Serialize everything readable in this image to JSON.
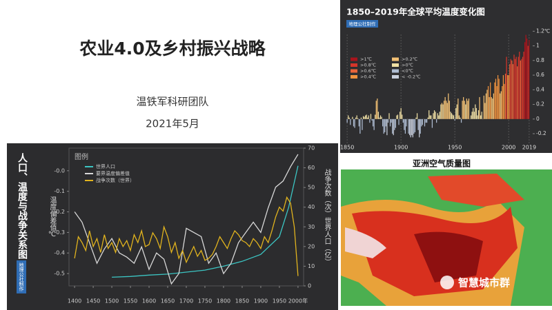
{
  "slide": {
    "title": "农业4.0及乡村振兴战略",
    "team": "温铁军科研团队",
    "date": "2021年5月"
  },
  "chart_data": [
    {
      "type": "bar",
      "title": "1850–2019年全球平均温度变化图",
      "badge": "地理公社制作",
      "x": [
        1850,
        1851,
        1852,
        1853,
        1854,
        1855,
        1856,
        1857,
        1858,
        1859,
        1860,
        1861,
        1862,
        1863,
        1864,
        1865,
        1866,
        1867,
        1868,
        1869,
        1870,
        1871,
        1872,
        1873,
        1874,
        1875,
        1876,
        1877,
        1878,
        1879,
        1880,
        1881,
        1882,
        1883,
        1884,
        1885,
        1886,
        1887,
        1888,
        1889,
        1890,
        1891,
        1892,
        1893,
        1894,
        1895,
        1896,
        1897,
        1898,
        1899,
        1900,
        1901,
        1902,
        1903,
        1904,
        1905,
        1906,
        1907,
        1908,
        1909,
        1910,
        1911,
        1912,
        1913,
        1914,
        1915,
        1916,
        1917,
        1918,
        1919,
        1920,
        1921,
        1922,
        1923,
        1924,
        1925,
        1926,
        1927,
        1928,
        1929,
        1930,
        1931,
        1932,
        1933,
        1934,
        1935,
        1936,
        1937,
        1938,
        1939,
        1940,
        1941,
        1942,
        1943,
        1944,
        1945,
        1946,
        1947,
        1948,
        1949,
        1950,
        1951,
        1952,
        1953,
        1954,
        1955,
        1956,
        1957,
        1958,
        1959,
        1960,
        1961,
        1962,
        1963,
        1964,
        1965,
        1966,
        1967,
        1968,
        1969,
        1970,
        1971,
        1972,
        1973,
        1974,
        1975,
        1976,
        1977,
        1978,
        1979,
        1980,
        1981,
        1982,
        1983,
        1984,
        1985,
        1986,
        1987,
        1988,
        1989,
        1990,
        1991,
        1992,
        1993,
        1994,
        1995,
        1996,
        1997,
        1998,
        1999,
        2000,
        2001,
        2002,
        2003,
        2004,
        2005,
        2006,
        2007,
        2008,
        2009,
        2010,
        2011,
        2012,
        2013,
        2014,
        2015,
        2016,
        2017,
        2018,
        2019
      ],
      "values": [
        -0.05,
        0.05,
        0.02,
        -0.08,
        0.0,
        0.03,
        -0.1,
        -0.12,
        0.02,
        0.05,
        0.01,
        -0.1,
        -0.2,
        0.02,
        -0.15,
        0.04,
        0.03,
        0.05,
        0.06,
        0.02,
        0.05,
        -0.05,
        0.07,
        -0.02,
        -0.1,
        -0.15,
        0.06,
        0.25,
        0.28,
        0.1,
        0.02,
        0.05,
        0.03,
        -0.1,
        -0.2,
        -0.18,
        -0.1,
        -0.22,
        -0.05,
        0.08,
        -0.1,
        -0.05,
        -0.2,
        -0.22,
        -0.15,
        -0.12,
        0.05,
        0.06,
        -0.08,
        0.1,
        0.15,
        0.06,
        -0.05,
        -0.15,
        -0.2,
        -0.1,
        0.0,
        -0.2,
        -0.22,
        -0.25,
        -0.22,
        -0.25,
        -0.2,
        -0.18,
        0.02,
        0.08,
        -0.15,
        -0.25,
        -0.2,
        -0.1,
        -0.08,
        0.0,
        -0.1,
        -0.05,
        -0.05,
        0.02,
        0.12,
        0.05,
        0.05,
        -0.12,
        0.08,
        0.12,
        0.1,
        -0.05,
        0.08,
        0.05,
        0.1,
        0.2,
        0.22,
        0.2,
        0.25,
        0.3,
        0.25,
        0.22,
        0.35,
        0.25,
        0.1,
        0.08,
        0.06,
        0.05,
        -0.02,
        0.15,
        0.2,
        0.28,
        0.05,
        0.02,
        -0.05,
        0.25,
        0.3,
        0.25,
        0.2,
        0.28,
        0.25,
        0.28,
        0.0,
        0.05,
        0.1,
        0.15,
        0.1,
        0.2,
        0.15,
        0.05,
        0.12,
        0.3,
        0.05,
        0.1,
        0.0,
        0.32,
        0.22,
        0.35,
        0.4,
        0.45,
        0.3,
        0.5,
        0.3,
        0.28,
        0.35,
        0.5,
        0.55,
        0.45,
        0.6,
        0.55,
        0.35,
        0.38,
        0.45,
        0.6,
        0.48,
        0.62,
        0.85,
        0.6,
        0.6,
        0.75,
        0.82,
        0.8,
        0.75,
        0.88,
        0.82,
        0.85,
        0.72,
        0.85,
        0.92,
        0.8,
        0.82,
        0.85,
        0.92,
        1.05,
        1.15,
        1.1,
        1.0,
        1.08
      ],
      "xlim": [
        1848,
        2021
      ],
      "xticks": [
        1850,
        1900,
        1950,
        2000,
        2019
      ],
      "ylim": [
        -0.35,
        1.25
      ],
      "yticks": [
        {
          "value": 1.2,
          "label": "1.2℃"
        },
        1,
        0.8,
        0.6,
        0.4,
        0.2,
        0,
        -0.2
      ],
      "legend": [
        {
          "value": 1,
          "label": ">1℃",
          "color": "#a8141c"
        },
        {
          "value": 0.8,
          "label": ">0.8℃",
          "color": "#d4352a"
        },
        {
          "value": 0.6,
          "label": ">0.6℃",
          "color": "#e8643a"
        },
        {
          "value": 0.4,
          "label": ">0.4℃",
          "color": "#f0923e"
        },
        {
          "value": 0.2,
          "label": ">0.2℃",
          "color": "#f2c074"
        },
        {
          "value": 0,
          "label": ">0℃",
          "color": "#efdfa4"
        },
        {
          "value": 0,
          "label": "<0℃",
          "color": "#aebcd2"
        },
        {
          "value": -0.2,
          "label": "< -0.2℃",
          "color": "#c8cfdc"
        }
      ]
    },
    {
      "type": "line",
      "title": "人口、温度与战争关系图",
      "badge": "地理公社制作",
      "legend_title": "图例",
      "ylabel": "温度偏差值℃",
      "y2label": "战争次数（次）世界人口（亿）",
      "xlim": [
        1385,
        2015
      ],
      "xticks": [
        1400,
        1450,
        1500,
        1550,
        1600,
        1650,
        1700,
        1750,
        1800,
        1850,
        1900,
        1950,
        {
          "value": 2000,
          "label": "2000年"
        }
      ],
      "ylim": [
        -0.56,
        0.11
      ],
      "yticks": [
        {
          "value": 0,
          "label": "-0.0"
        },
        -0.1,
        -0.2,
        -0.3,
        -0.4,
        -0.5
      ],
      "y2lim": [
        0,
        70
      ],
      "y2ticks": [
        0,
        10,
        20,
        30,
        40,
        50,
        60,
        70
      ],
      "series": [
        {
          "name": "世界人口",
          "color": "#3cc6c4",
          "axis": "y2",
          "x": [
            1500,
            1550,
            1600,
            1650,
            1700,
            1750,
            1800,
            1850,
            1900,
            1950,
            1975,
            2000
          ],
          "values": [
            4.4,
            4.8,
            5.5,
            6,
            7,
            8,
            10,
            12.5,
            16,
            25,
            40,
            61
          ]
        },
        {
          "name": "要界温度偏差值",
          "color": "#d8d8d8",
          "x": [
            1400,
            1420,
            1440,
            1460,
            1480,
            1500,
            1520,
            1540,
            1560,
            1580,
            1600,
            1620,
            1640,
            1660,
            1680,
            1700,
            1720,
            1740,
            1760,
            1780,
            1800,
            1820,
            1840,
            1860,
            1880,
            1900,
            1920,
            1940,
            1960,
            1980,
            2000
          ],
          "values": [
            -0.2,
            -0.25,
            -0.35,
            -0.45,
            -0.38,
            -0.33,
            -0.4,
            -0.42,
            -0.45,
            -0.37,
            -0.48,
            -0.4,
            -0.43,
            -0.55,
            -0.5,
            -0.28,
            -0.3,
            -0.32,
            -0.45,
            -0.4,
            -0.5,
            -0.45,
            -0.35,
            -0.3,
            -0.25,
            -0.3,
            -0.18,
            -0.08,
            -0.05,
            0.02,
            0.08
          ]
        },
        {
          "name": "战争次数（世界）",
          "color": "#e2b41e",
          "axis": "y2",
          "x": [
            1400,
            1410,
            1420,
            1430,
            1440,
            1450,
            1460,
            1470,
            1480,
            1490,
            1500,
            1510,
            1520,
            1530,
            1540,
            1550,
            1560,
            1570,
            1580,
            1590,
            1600,
            1610,
            1620,
            1630,
            1640,
            1650,
            1660,
            1670,
            1680,
            1690,
            1700,
            1710,
            1720,
            1730,
            1740,
            1750,
            1760,
            1770,
            1780,
            1790,
            1800,
            1810,
            1820,
            1830,
            1840,
            1850,
            1860,
            1870,
            1880,
            1890,
            1900,
            1910,
            1920,
            1930,
            1940,
            1950,
            1960,
            1970,
            1980,
            1990,
            2000
          ],
          "values": [
            14,
            25,
            22,
            18,
            28,
            20,
            24,
            17,
            26,
            19,
            22,
            17,
            24,
            20,
            23,
            18,
            26,
            22,
            28,
            20,
            21,
            27,
            24,
            19,
            30,
            25,
            17,
            22,
            14,
            18,
            12,
            16,
            20,
            15,
            18,
            13,
            14,
            16,
            20,
            25,
            22,
            19,
            24,
            28,
            26,
            23,
            22,
            20,
            24,
            22,
            19,
            25,
            22,
            28,
            35,
            40,
            38,
            45,
            42,
            30,
            5
          ]
        }
      ]
    }
  ],
  "map": {
    "title": "亚洲空气质量图"
  },
  "watermark": "智慧城市群"
}
